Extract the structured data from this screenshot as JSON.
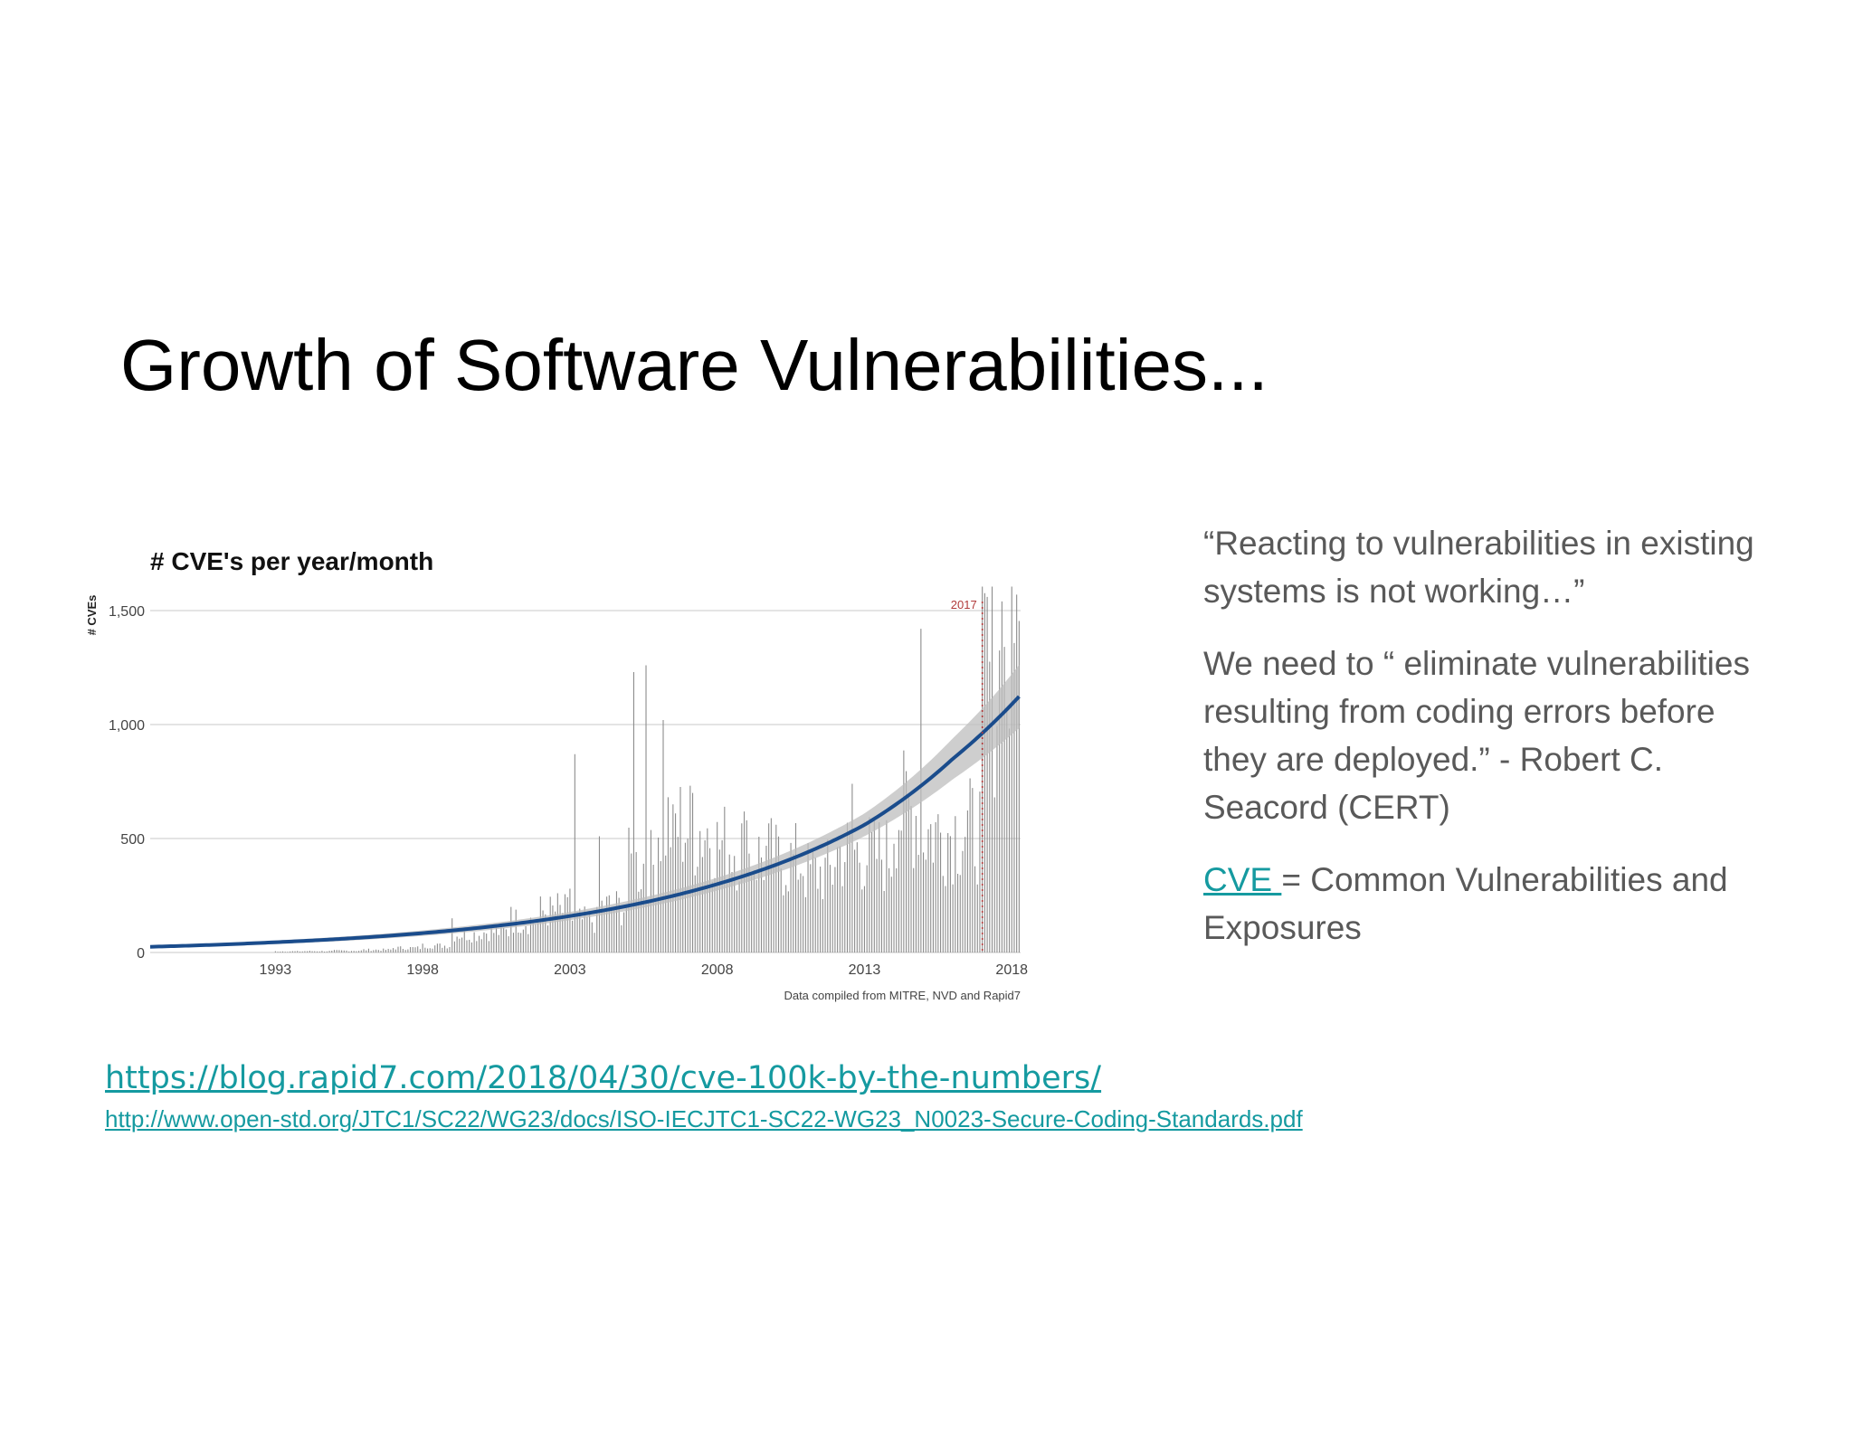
{
  "slide": {
    "title": "Growth of Software Vulnerabilities..."
  },
  "quote": {
    "line1": "“Reacting to vulnerabilities in existing systems is not working…”",
    "line2": "We need to “ eliminate vulnerabilities resulting from coding errors before they are deployed.” - Robert C. Seacord (CERT)",
    "cve_link": "CVE ",
    "cve_def": "= Common Vulnerabilities and Exposures"
  },
  "links": {
    "rapid7": "https://blog.rapid7.com/2018/04/30/cve-100k-by-the-numbers/",
    "openstd": "http://www.open-std.org/JTC1/SC22/WG23/docs/ISO-IECJTC1-SC22-WG23_N0023-Secure-Coding-Standards.pdf"
  },
  "colors": {
    "bars": "#8c8c8c",
    "trend": "#1a4c8c",
    "ci_band": "#bdbdbd",
    "marker": "#b03a3a",
    "link": "#159aa0"
  },
  "chart_data": {
    "type": "bar",
    "title": "# CVE's per year/month",
    "ylabel": "# CVEs",
    "source_note": "Data compiled from MITRE, NVD and Rapid7",
    "xlim": [
      1988.75,
      2018.3
    ],
    "ylim": [
      0,
      1500
    ],
    "x_ticks": [
      1993,
      1998,
      2003,
      2008,
      2013,
      2018
    ],
    "y_ticks": [
      0,
      500,
      1000,
      1500
    ],
    "y_tick_labels": [
      "0",
      "500",
      "1,000",
      "1,500"
    ],
    "grid": true,
    "annotation": {
      "label": "2017",
      "x": 2017.0
    },
    "trend": {
      "name": "exponential fit",
      "x": [
        1988.75,
        1993,
        1998,
        2003,
        2008,
        2013,
        2016,
        2018.3
      ],
      "y": [
        25,
        45,
        85,
        160,
        300,
        560,
        850,
        1130
      ],
      "ci_halfwidth": [
        5,
        8,
        12,
        18,
        28,
        50,
        90,
        140
      ]
    },
    "annual_yearly": [
      {
        "year": 1993,
        "v": 5
      },
      {
        "year": 1994,
        "v": 6
      },
      {
        "year": 1995,
        "v": 8
      },
      {
        "year": 1996,
        "v": 12
      },
      {
        "year": 1997,
        "v": 20
      },
      {
        "year": 1998,
        "v": 30
      },
      {
        "year": 1999,
        "v": 80
      },
      {
        "year": 2000,
        "v": 90
      },
      {
        "year": 2001,
        "v": 140
      },
      {
        "year": 2002,
        "v": 180
      },
      {
        "year": 2003,
        "v": 140
      },
      {
        "year": 2004,
        "v": 200
      },
      {
        "year": 2005,
        "v": 380
      },
      {
        "year": 2006,
        "v": 560
      },
      {
        "year": 2007,
        "v": 540
      },
      {
        "year": 2008,
        "v": 470
      },
      {
        "year": 2009,
        "v": 420
      },
      {
        "year": 2010,
        "v": 400
      },
      {
        "year": 2011,
        "v": 350
      },
      {
        "year": 2012,
        "v": 440
      },
      {
        "year": 2013,
        "v": 430
      },
      {
        "year": 2014,
        "v": 620
      },
      {
        "year": 2015,
        "v": 530
      },
      {
        "year": 2016,
        "v": 540
      },
      {
        "year": 2017,
        "v": 1200
      },
      {
        "year": 2018,
        "v": 1250
      }
    ],
    "monthly_spikes": [
      {
        "x": 1999.0,
        "v": 150
      },
      {
        "x": 2001.0,
        "v": 200
      },
      {
        "x": 2003.0,
        "v": 280
      },
      {
        "x": 2002.6,
        "v": 260
      },
      {
        "x": 2003.2,
        "v": 870
      },
      {
        "x": 2004.0,
        "v": 510
      },
      {
        "x": 2005.2,
        "v": 1230
      },
      {
        "x": 2005.6,
        "v": 1260
      },
      {
        "x": 2006.2,
        "v": 1020
      },
      {
        "x": 2006.5,
        "v": 650
      },
      {
        "x": 2007.2,
        "v": 700
      },
      {
        "x": 2009.0,
        "v": 580
      },
      {
        "x": 2011.1,
        "v": 480
      },
      {
        "x": 2012.6,
        "v": 740
      },
      {
        "x": 2014.9,
        "v": 1420
      },
      {
        "x": 2017.2,
        "v": 1560
      },
      {
        "x": 2017.7,
        "v": 1540
      },
      {
        "x": 2018.2,
        "v": 1570
      }
    ]
  }
}
